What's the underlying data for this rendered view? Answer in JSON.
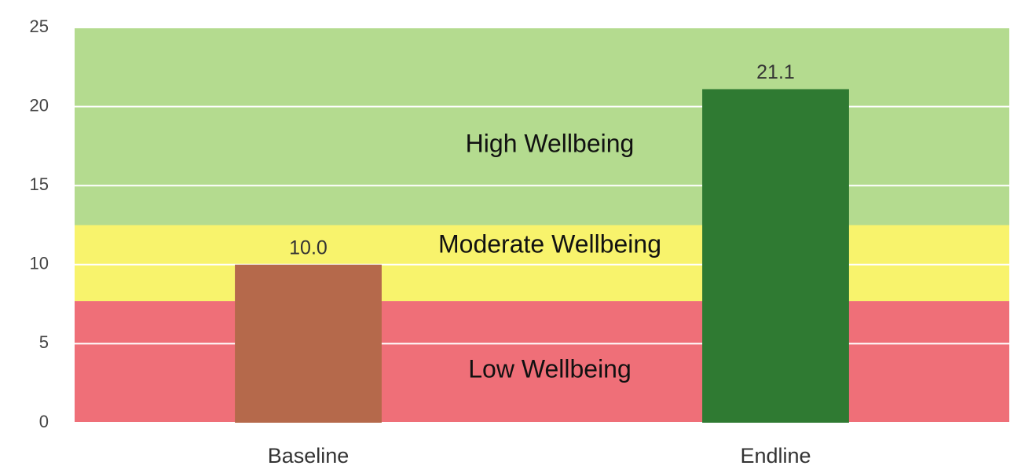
{
  "chart_data": {
    "type": "bar",
    "categories": [
      "Baseline",
      "Endline"
    ],
    "values": [
      10,
      21.1
    ],
    "value_labels": [
      "10.0",
      "21.1"
    ],
    "colors": [
      "#b5694b",
      "#2f7a32"
    ],
    "ylim": [
      0,
      25
    ],
    "yticks": [
      0,
      5,
      10,
      15,
      20,
      25
    ],
    "grid": true,
    "bands": [
      {
        "name": "Low Wellbeing",
        "from": 0,
        "to": 7.7,
        "color": "#ef6f78"
      },
      {
        "name": "Moderate Wellbeing",
        "from": 7.7,
        "to": 12.5,
        "color": "#f8f36c"
      },
      {
        "name": "High Wellbeing",
        "from": 12.5,
        "to": 25,
        "color": "#b4db8f"
      }
    ]
  }
}
